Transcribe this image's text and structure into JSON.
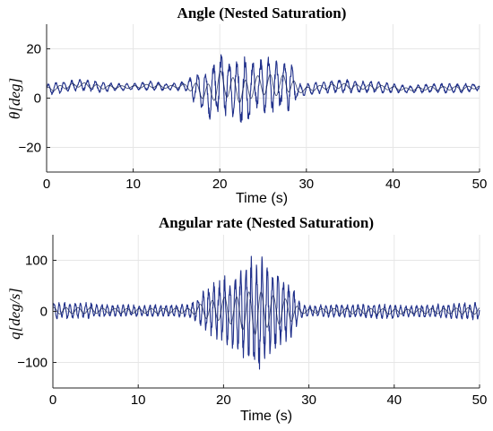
{
  "chart_data": [
    {
      "type": "line",
      "title": "Angle (Nested Saturation)",
      "xlabel": "Time (s)",
      "ylabel": "θ[deg]",
      "xlim": [
        0,
        50
      ],
      "ylim": [
        -30,
        30
      ],
      "xticks": [
        0,
        10,
        20,
        30,
        40,
        50
      ],
      "yticks": [
        -20,
        0,
        20
      ],
      "grid": true,
      "color": "#1f2f8a",
      "series": [
        {
          "x": [
            0,
            2,
            4,
            6,
            8,
            10,
            12,
            14,
            16,
            17,
            18,
            19,
            20,
            21,
            22,
            23,
            24,
            25,
            26,
            27,
            28,
            29,
            30,
            32,
            34,
            36,
            38,
            40,
            42,
            44,
            46,
            48,
            50
          ],
          "envelope_min": [
            1,
            2,
            3,
            2,
            3,
            3,
            3,
            3,
            3,
            -2,
            -6,
            -10,
            -7,
            -8,
            -9,
            -15,
            -4,
            -6,
            -8,
            -5,
            -6,
            0,
            1,
            2,
            2,
            2,
            2,
            2,
            2,
            2,
            2,
            2,
            3
          ],
          "envelope_max": [
            6,
            7,
            8,
            7,
            6,
            6,
            7,
            6,
            7,
            10,
            12,
            13,
            20,
            17,
            16,
            18,
            15,
            17,
            18,
            15,
            20,
            6,
            6,
            7,
            8,
            7,
            7,
            6,
            5,
            6,
            6,
            6,
            6
          ]
        }
      ]
    },
    {
      "type": "line",
      "title": "Angular rate (Nested Saturation)",
      "xlabel": "Time (s)",
      "ylabel": "q[deg/s]",
      "xlim": [
        0,
        50
      ],
      "ylim": [
        -150,
        150
      ],
      "xticks": [
        0,
        10,
        20,
        30,
        40,
        50
      ],
      "yticks": [
        -100,
        0,
        100
      ],
      "grid": true,
      "color": "#1f2f8a",
      "series": [
        {
          "x": [
            0,
            2,
            4,
            6,
            8,
            10,
            12,
            14,
            16,
            17,
            18,
            19,
            20,
            21,
            22,
            23,
            24,
            25,
            26,
            27,
            28,
            29,
            30,
            32,
            34,
            36,
            38,
            40,
            42,
            44,
            46,
            48,
            50
          ],
          "envelope_min": [
            -18,
            -15,
            -15,
            -12,
            -12,
            -12,
            -12,
            -12,
            -12,
            -25,
            -45,
            -55,
            -60,
            -75,
            -95,
            -110,
            -130,
            -95,
            -85,
            -65,
            -55,
            -15,
            -10,
            -12,
            -15,
            -14,
            -15,
            -15,
            -12,
            -14,
            -14,
            -16,
            -18
          ],
          "envelope_max": [
            20,
            18,
            18,
            15,
            14,
            14,
            14,
            15,
            14,
            30,
            50,
            60,
            70,
            75,
            90,
            110,
            120,
            100,
            85,
            70,
            55,
            15,
            12,
            14,
            16,
            15,
            15,
            14,
            12,
            15,
            15,
            18,
            20
          ]
        }
      ]
    }
  ]
}
